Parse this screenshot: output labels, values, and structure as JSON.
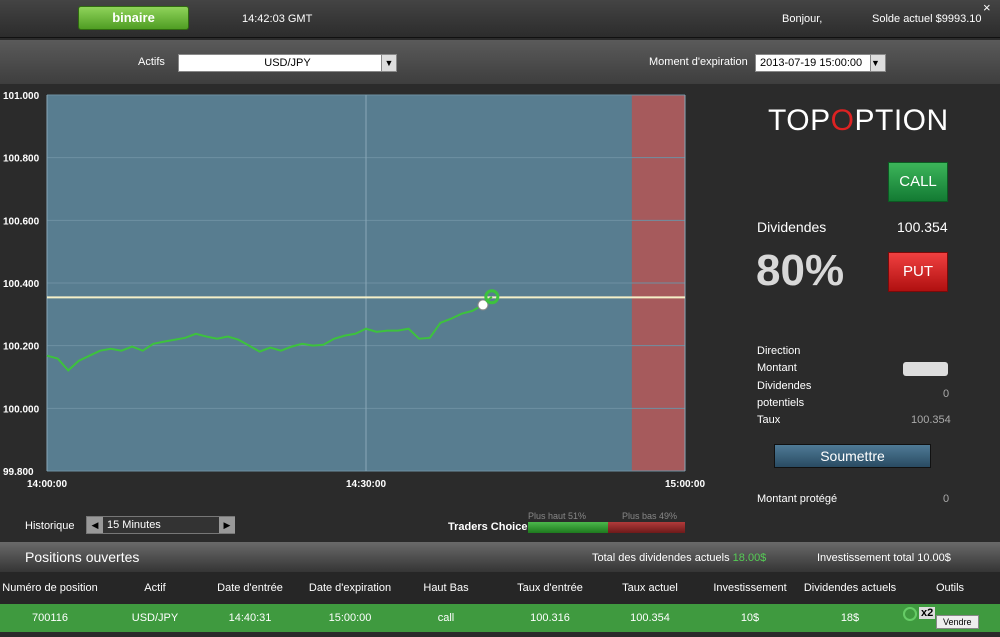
{
  "header": {
    "mode_button": "binaire",
    "server_time": "14:42:03 GMT",
    "greeting": "Bonjour,",
    "balance": "Solde actuel $9993.10",
    "close": "×"
  },
  "toolbar": {
    "assets_label": "Actifs",
    "asset": "USD/JPY",
    "expiry_label": "Moment d'expiration",
    "expiry": "2013-07-19 15:00:00"
  },
  "chart_data": {
    "type": "line",
    "x": [
      "14:00:00",
      "14:01:00",
      "14:02:00",
      "14:03:00",
      "14:04:00",
      "14:05:00",
      "14:06:00",
      "14:07:00",
      "14:08:00",
      "14:09:00",
      "14:10:00",
      "14:11:00",
      "14:12:00",
      "14:13:00",
      "14:14:00",
      "14:15:00",
      "14:16:00",
      "14:17:00",
      "14:18:00",
      "14:19:00",
      "14:20:00",
      "14:21:00",
      "14:22:00",
      "14:23:00",
      "14:24:00",
      "14:25:00",
      "14:26:00",
      "14:27:00",
      "14:28:00",
      "14:29:00",
      "14:30:00",
      "14:31:00",
      "14:32:00",
      "14:33:00",
      "14:34:00",
      "14:35:00",
      "14:36:00",
      "14:37:00",
      "14:38:00",
      "14:39:00",
      "14:40:00",
      "14:41:00",
      "14:41:50"
    ],
    "series": [
      {
        "color": "#3dc23d",
        "values": [
          100.168,
          100.159,
          100.121,
          100.152,
          100.168,
          100.184,
          100.19,
          100.184,
          100.197,
          100.184,
          100.206,
          100.213,
          100.219,
          100.225,
          100.238,
          100.229,
          100.222,
          100.229,
          100.219,
          100.2,
          100.181,
          100.194,
          100.184,
          100.197,
          100.206,
          100.2,
          100.203,
          100.222,
          100.232,
          100.238,
          100.254,
          100.244,
          100.248,
          100.248,
          100.254,
          100.222,
          100.225,
          100.273,
          100.286,
          100.302,
          100.311,
          100.33,
          100.356
        ]
      }
    ],
    "reference_line": 100.354,
    "reference_color": "#f5f0c8",
    "expiry_zone_start": "14:55:00",
    "expiry_zone_color": "#a65a5c",
    "plot_color": "#587d90",
    "xlim": [
      "14:00:00",
      "15:00:00"
    ],
    "xticks": [
      "14:00:00",
      "14:30:00",
      "15:00:00"
    ],
    "ylim": [
      99.8,
      101.0
    ],
    "yticks": [
      {
        "value": 99.8,
        "label": "99.800"
      },
      {
        "value": 100.0,
        "label": "100.000"
      },
      {
        "value": 100.2,
        "label": "100.200"
      },
      {
        "value": 100.4,
        "label": "100.400"
      },
      {
        "value": 100.6,
        "label": "100.600"
      },
      {
        "value": 100.8,
        "label": "100.800"
      },
      {
        "value": 101.0,
        "label": "101.000"
      }
    ],
    "grid": true
  },
  "history": {
    "label": "Historique",
    "period": "15 Minutes"
  },
  "traders_choice": {
    "label": "Traders Choice",
    "higher": "Plus haut 51%",
    "lower": "Plus bas 49%"
  },
  "trade_panel": {
    "logo_start": "TOP",
    "logo_end": "PTION",
    "call": "CALL",
    "put": "PUT",
    "dividends_label": "Dividendes",
    "dividends_value": "100.354",
    "payout": "80%",
    "direction_label": "Direction",
    "amount_label": "Montant",
    "potential_label_1": "Dividendes",
    "potential_label_2": "potentiels",
    "potential_value": "0",
    "rate_label": "Taux",
    "rate_value": "100.354",
    "submit": "Soumettre",
    "protected_label": "Montant protégé",
    "protected_value": "0"
  },
  "positions": {
    "title": "Positions ouvertes",
    "total_dividends_label": "Total des dividendes actuels",
    "total_dividends_value": "18.00$",
    "total_investment": "Investissement total 10.00$",
    "columns": [
      "Numéro de position",
      "Actif",
      "Date d'entrée",
      "Date d'expiration",
      "Haut Bas",
      "Taux d'entrée",
      "Taux actuel",
      "Investissement",
      "Dividendes actuels",
      "Outils"
    ],
    "rows": [
      [
        "700116",
        "USD/JPY",
        "14:40:31",
        "15:00:00",
        "call",
        "100.316",
        "100.354",
        "10$",
        "18$"
      ]
    ],
    "tools": {
      "multiplier": "x2",
      "sell": "Vendre"
    }
  }
}
